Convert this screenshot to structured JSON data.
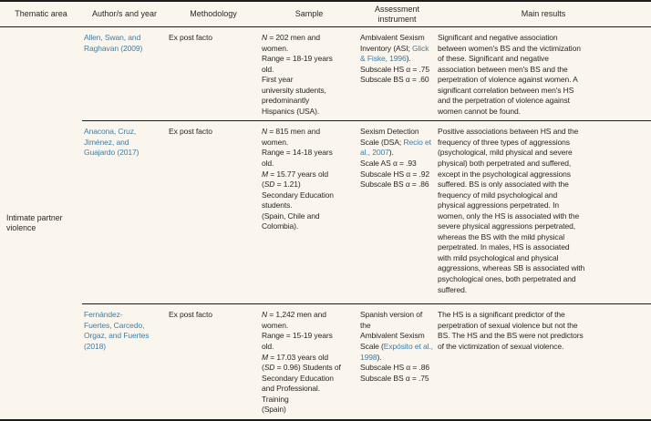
{
  "colors": {
    "background": "#faf5ed",
    "text": "#2b2724",
    "link": "#3d7ea6",
    "border": "#1e1c1a"
  },
  "header": {
    "columns": [
      "Thematic area",
      "Author/s and year",
      "Methodology",
      "Sample",
      "Assessment\ninstrument",
      "Main results"
    ]
  },
  "thematic_area": "Intimate partner violence",
  "rows": [
    {
      "authors": "Allen, Swan, and\nRaghavan (2009)",
      "methodology": "Ex post facto",
      "sample": [
        {
          "text": "N",
          "style": "italic"
        },
        {
          "text": " = 202 men and\nwomen.\nRange = 18-19 years\nold.\nFirst year\nuniversity students,\npredominantly\nHispanics (USA)."
        }
      ],
      "assessment": [
        {
          "text": "Ambivalent Sexism\nInventory (ASI; "
        },
        {
          "text": "Glick\n& Fiske, 1996",
          "style": "link"
        },
        {
          "text": ").\nSubscale HS α = .75\nSubscale BS α = .60"
        }
      ],
      "main_results": "Significant and negative association\nbetween women's BS and the victimization\nof these. Significant and negative\nassociation between men's BS and the\nperpetration of violence against women. A\nsignificant correlation between men's HS\nand the perpetration of violence against\nwomen cannot be found."
    },
    {
      "authors": "Anacona, Cruz,\nJiménez, and\nGuajardo (2017)",
      "methodology": "Ex post facto",
      "sample": [
        {
          "text": "N",
          "style": "italic"
        },
        {
          "text": " = 815 men and\nwomen.\nRange = 14-18 years\nold.\n"
        },
        {
          "text": "M",
          "style": "italic"
        },
        {
          "text": " = 15.77 years old\n("
        },
        {
          "text": "SD",
          "style": "italic"
        },
        {
          "text": " = 1.21)\nSecondary Education\nstudents.\n(Spain, Chile and\nColombia)."
        }
      ],
      "assessment": [
        {
          "text": "Sexism Detection\nScale (DSA; "
        },
        {
          "text": "Recio et\nal., 2007",
          "style": "link"
        },
        {
          "text": ").\nScale AS α = .93\nSubscale HS α = .92\nSubscale BS α = .86"
        }
      ],
      "main_results": "Positive associations between HS and the\nfrequency of three types of aggressions\n(psychological, mild physical and severe\nphysical) both perpetrated and suffered,\nexcept in the psychological aggressions\nsuffered. BS is only associated with the\nfrequency of mild psychological and\nphysical aggressions perpetrated. In\nwomen, only the HS is associated with the\nsevere physical aggressions perpetrated,\nwhereas the BS with the mild physical\nperpetrated. In males, HS is associated\nwith mild psychological and physical\naggressions, whereas SB is associated with\npsychological ones, both perpetrated and\nsuffered."
    },
    {
      "authors": "Fernández-\nFuertes, Carcedo,\nOrgaz, and Fuertes\n(2018)",
      "methodology": "Ex post facto",
      "sample": [
        {
          "text": "N",
          "style": "italic"
        },
        {
          "text": " = 1,242 men and\nwomen.\nRange = 15-19 years\nold.\n"
        },
        {
          "text": "M",
          "style": "italic"
        },
        {
          "text": " = 17.03 years old\n("
        },
        {
          "text": "SD",
          "style": "italic"
        },
        {
          "text": " = 0.96) Students of\nSecondary Education\nand Professional.\nTraining\n(Spain)"
        }
      ],
      "assessment": [
        {
          "text": "Spanish version of the\nAmbivalent Sexism\nScale ("
        },
        {
          "text": "Expósito et al.,\n1998",
          "style": "link"
        },
        {
          "text": ").\nSubscale HS α = .86\nSubscale BS α = .75"
        }
      ],
      "main_results": "The HS is a significant predictor of the\nperpetration of sexual violence but not the\nBS. The HS and the BS were not predictors\nof the victimization of sexual violence."
    }
  ]
}
